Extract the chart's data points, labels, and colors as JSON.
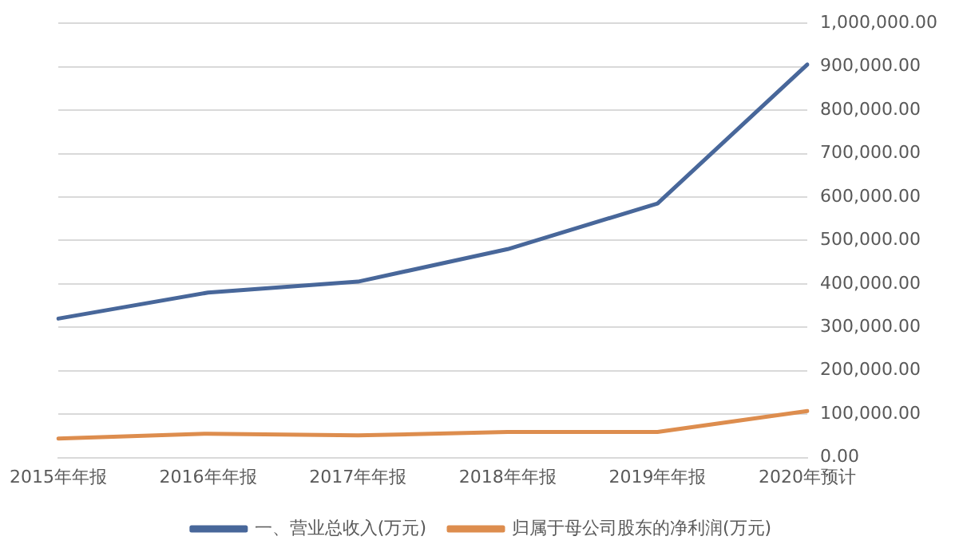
{
  "chart_data": {
    "type": "line",
    "categories": [
      "2015年年报",
      "2016年年报",
      "2017年年报",
      "2018年年报",
      "2019年年报",
      "2020年预计"
    ],
    "series": [
      {
        "name": "一、营业总收入(万元)",
        "color": "#48679a",
        "values": [
          320000,
          380000,
          405000,
          480000,
          585000,
          905000
        ]
      },
      {
        "name": "归属于母公司股东的净利润(万元)",
        "color": "#dd8d4e",
        "values": [
          44000,
          55000,
          51000,
          59000,
          59000,
          107000
        ]
      }
    ],
    "ylim": [
      0,
      1000000
    ],
    "yticks": [
      {
        "value": 0,
        "label": "0.00"
      },
      {
        "value": 100000,
        "label": "100,000.00"
      },
      {
        "value": 200000,
        "label": "200,000.00"
      },
      {
        "value": 300000,
        "label": "300,000.00"
      },
      {
        "value": 400000,
        "label": "400,000.00"
      },
      {
        "value": 500000,
        "label": "500,000.00"
      },
      {
        "value": 600000,
        "label": "600,000.00"
      },
      {
        "value": 700000,
        "label": "700,000.00"
      },
      {
        "value": 800000,
        "label": "800,000.00"
      },
      {
        "value": 900000,
        "label": "900,000.00"
      },
      {
        "value": 1000000,
        "label": "1,000,000.00"
      }
    ],
    "grid": "y",
    "legend": "bottom",
    "marker": "none",
    "line_style": "solid"
  }
}
